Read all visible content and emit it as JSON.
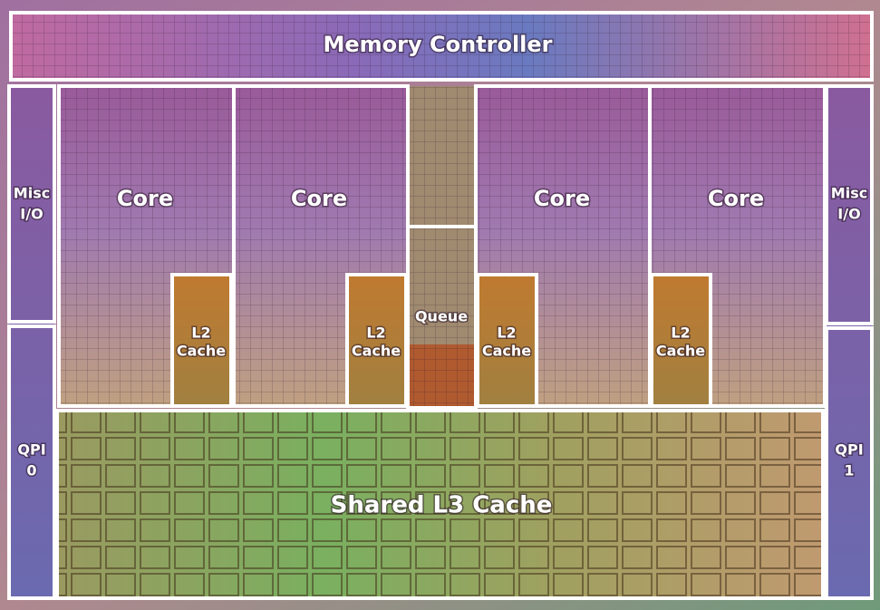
{
  "regions": [
    {
      "lines": [
        "Memory Controller"
      ]
    },
    {
      "lines": [
        "Core"
      ]
    },
    {
      "lines": [
        "Core"
      ]
    },
    {
      "lines": [
        "Core"
      ]
    },
    {
      "lines": [
        "Core"
      ]
    },
    {
      "lines": [
        "L2",
        "Cache"
      ]
    },
    {
      "lines": [
        "L2",
        "Cache"
      ]
    },
    {
      "lines": [
        "L2",
        "Cache"
      ]
    },
    {
      "lines": [
        "L2",
        "Cache"
      ]
    },
    {
      "lines": [
        "Queue"
      ]
    },
    {
      "lines": [
        "Misc",
        "I/O"
      ]
    },
    {
      "lines": [
        "Misc",
        "I/O"
      ]
    },
    {
      "lines": [
        "QPI",
        "0"
      ]
    },
    {
      "lines": [
        "QPI",
        "1"
      ]
    },
    {
      "lines": [
        "Shared L3 Cache"
      ]
    }
  ]
}
